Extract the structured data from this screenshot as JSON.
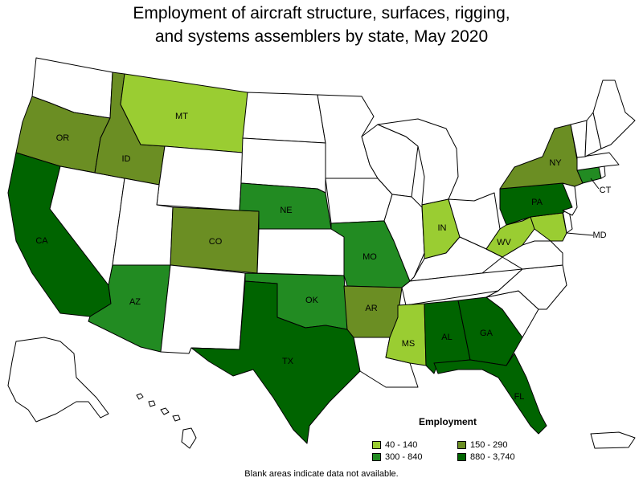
{
  "title_line1": "Employment of aircraft structure, surfaces, rigging,",
  "title_line2": "and systems assemblers by state, May 2020",
  "legend": {
    "title": "Employment",
    "items": [
      {
        "label": "40 - 140",
        "color": "#9acd32"
      },
      {
        "label": "150 - 290",
        "color": "#6b8e23"
      },
      {
        "label": "300 - 840",
        "color": "#228b22"
      },
      {
        "label": "880 - 3,740",
        "color": "#006400"
      }
    ]
  },
  "footnote": "Blank areas indicate data not available.",
  "colors": {
    "nodata": "#ffffff",
    "border": "#000000"
  },
  "states": [
    {
      "abbr": "WA",
      "label": "",
      "bin": null
    },
    {
      "abbr": "OR",
      "label": "OR",
      "bin": 1
    },
    {
      "abbr": "CA",
      "label": "CA",
      "bin": 3
    },
    {
      "abbr": "NV",
      "label": "",
      "bin": null
    },
    {
      "abbr": "ID",
      "label": "ID",
      "bin": 1
    },
    {
      "abbr": "MT",
      "label": "MT",
      "bin": 0
    },
    {
      "abbr": "WY",
      "label": "",
      "bin": null
    },
    {
      "abbr": "UT",
      "label": "",
      "bin": null
    },
    {
      "abbr": "AZ",
      "label": "AZ",
      "bin": 2
    },
    {
      "abbr": "CO",
      "label": "CO",
      "bin": 1
    },
    {
      "abbr": "NM",
      "label": "",
      "bin": null
    },
    {
      "abbr": "ND",
      "label": "",
      "bin": null
    },
    {
      "abbr": "SD",
      "label": "",
      "bin": null
    },
    {
      "abbr": "NE",
      "label": "NE",
      "bin": 2
    },
    {
      "abbr": "KS",
      "label": "",
      "bin": null
    },
    {
      "abbr": "OK",
      "label": "OK",
      "bin": 2
    },
    {
      "abbr": "TX",
      "label": "TX",
      "bin": 3
    },
    {
      "abbr": "MN",
      "label": "",
      "bin": null
    },
    {
      "abbr": "IA",
      "label": "",
      "bin": null
    },
    {
      "abbr": "MO",
      "label": "MO",
      "bin": 2
    },
    {
      "abbr": "AR",
      "label": "AR",
      "bin": 1
    },
    {
      "abbr": "LA",
      "label": "",
      "bin": null
    },
    {
      "abbr": "WI",
      "label": "",
      "bin": null
    },
    {
      "abbr": "IL",
      "label": "",
      "bin": null
    },
    {
      "abbr": "MI",
      "label": "",
      "bin": null
    },
    {
      "abbr": "IN",
      "label": "IN",
      "bin": 0
    },
    {
      "abbr": "OH",
      "label": "",
      "bin": null
    },
    {
      "abbr": "KY",
      "label": "",
      "bin": null
    },
    {
      "abbr": "TN",
      "label": "",
      "bin": null
    },
    {
      "abbr": "MS",
      "label": "MS",
      "bin": 0
    },
    {
      "abbr": "AL",
      "label": "AL",
      "bin": 3
    },
    {
      "abbr": "GA",
      "label": "GA",
      "bin": 3
    },
    {
      "abbr": "FL",
      "label": "FL",
      "bin": 3
    },
    {
      "abbr": "SC",
      "label": "",
      "bin": null
    },
    {
      "abbr": "NC",
      "label": "",
      "bin": null
    },
    {
      "abbr": "VA",
      "label": "",
      "bin": null
    },
    {
      "abbr": "WV",
      "label": "WV",
      "bin": 0
    },
    {
      "abbr": "MD",
      "label": "MD",
      "bin": 0
    },
    {
      "abbr": "DE",
      "label": "",
      "bin": null
    },
    {
      "abbr": "PA",
      "label": "PA",
      "bin": 3
    },
    {
      "abbr": "NJ",
      "label": "",
      "bin": null
    },
    {
      "abbr": "NY",
      "label": "NY",
      "bin": 1
    },
    {
      "abbr": "CT",
      "label": "CT",
      "bin": 2
    },
    {
      "abbr": "RI",
      "label": "",
      "bin": null
    },
    {
      "abbr": "MA",
      "label": "",
      "bin": null
    },
    {
      "abbr": "VT",
      "label": "",
      "bin": null
    },
    {
      "abbr": "NH",
      "label": "",
      "bin": null
    },
    {
      "abbr": "ME",
      "label": "",
      "bin": null
    },
    {
      "abbr": "AK",
      "label": "",
      "bin": null
    },
    {
      "abbr": "HI",
      "label": "",
      "bin": null
    },
    {
      "abbr": "PR",
      "label": "",
      "bin": null
    }
  ]
}
